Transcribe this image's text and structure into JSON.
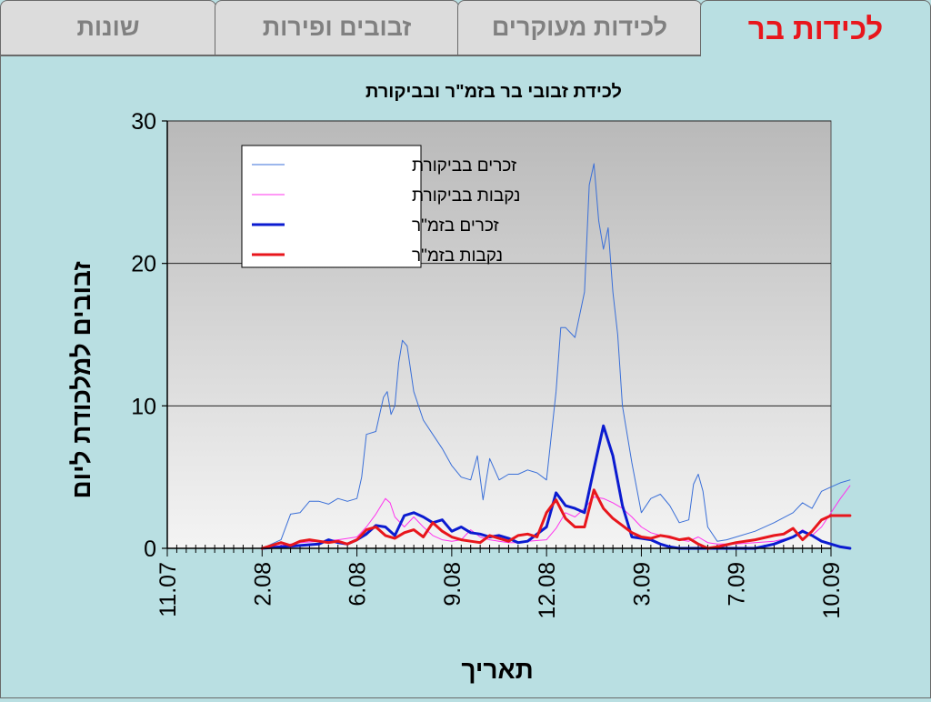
{
  "tabs": [
    {
      "label": "לכידות בר",
      "active": true
    },
    {
      "label": "לכידות מעוקרים",
      "active": false
    },
    {
      "label": "זבובים ופירות",
      "active": false
    },
    {
      "label": "שונות",
      "active": false
    }
  ],
  "colors": {
    "accent_tab": "#e8161c",
    "background": "#b9dfe2",
    "male_control": "#3a6fd8",
    "female_control": "#ff33ee",
    "male_sit": "#0b1bd0",
    "female_sit": "#e8161c"
  },
  "chart_data": {
    "type": "line",
    "title": "לכידת זבובי בר בזמ\"ר ובביקורת",
    "xlabel": "תאריך",
    "ylabel": "זבובים למלכודת ליום",
    "ylim": [
      0,
      30
    ],
    "yticks": [
      0,
      10,
      20,
      30
    ],
    "xlim": [
      0,
      70
    ],
    "xticks": [
      {
        "x": 0,
        "label": "11.07"
      },
      {
        "x": 10,
        "label": "2.08"
      },
      {
        "x": 20,
        "label": "6.08"
      },
      {
        "x": 30,
        "label": "9.08"
      },
      {
        "x": 40,
        "label": "12.08"
      },
      {
        "x": 50,
        "label": "3.09"
      },
      {
        "x": 60,
        "label": "7.09"
      },
      {
        "x": 70,
        "label": "10.09"
      }
    ],
    "grid": "horizontal",
    "legend_position": "top-left",
    "series": [
      {
        "name": "זכרים בביקורת",
        "color": "#3a6fd8",
        "width": 1,
        "points": [
          [
            10,
            0
          ],
          [
            11,
            0.3
          ],
          [
            12,
            0.6
          ],
          [
            13,
            2.4
          ],
          [
            14,
            2.5
          ],
          [
            15,
            3.3
          ],
          [
            16,
            3.3
          ],
          [
            17,
            3.1
          ],
          [
            18,
            3.5
          ],
          [
            19,
            3.3
          ],
          [
            20,
            3.5
          ],
          [
            20.5,
            5
          ],
          [
            21,
            8
          ],
          [
            22,
            8.2
          ],
          [
            22.8,
            10.6
          ],
          [
            23.2,
            11
          ],
          [
            23.6,
            9.4
          ],
          [
            24,
            10
          ],
          [
            24.4,
            13
          ],
          [
            24.8,
            14.6
          ],
          [
            25.3,
            14.2
          ],
          [
            26,
            11
          ],
          [
            27,
            9
          ],
          [
            28,
            8
          ],
          [
            29,
            7
          ],
          [
            30,
            5.8
          ],
          [
            31,
            5
          ],
          [
            32,
            4.8
          ],
          [
            32.7,
            6.5
          ],
          [
            33.3,
            3.4
          ],
          [
            34,
            6.3
          ],
          [
            35,
            4.8
          ],
          [
            36,
            5.2
          ],
          [
            37,
            5.2
          ],
          [
            38,
            5.5
          ],
          [
            39,
            5.3
          ],
          [
            40,
            4.8
          ],
          [
            41,
            11
          ],
          [
            41.5,
            15.5
          ],
          [
            42,
            15.5
          ],
          [
            43,
            14.8
          ],
          [
            44,
            18
          ],
          [
            44.5,
            25.5
          ],
          [
            45,
            27
          ],
          [
            45.5,
            23
          ],
          [
            46,
            21
          ],
          [
            46.5,
            22.5
          ],
          [
            47,
            18
          ],
          [
            47.5,
            15
          ],
          [
            48,
            10
          ],
          [
            49,
            6
          ],
          [
            50,
            2.5
          ],
          [
            51,
            3.5
          ],
          [
            52,
            3.8
          ],
          [
            53,
            3
          ],
          [
            54,
            1.8
          ],
          [
            55,
            2
          ],
          [
            55.5,
            4.5
          ],
          [
            56,
            5.2
          ],
          [
            56.5,
            4
          ],
          [
            57,
            1.5
          ],
          [
            58,
            0.5
          ],
          [
            59,
            0.6
          ],
          [
            60,
            0.8
          ],
          [
            62,
            1.2
          ],
          [
            64,
            1.8
          ],
          [
            66,
            2.5
          ],
          [
            67,
            3.2
          ],
          [
            68,
            2.8
          ],
          [
            69,
            4
          ],
          [
            70,
            4.3
          ],
          [
            71,
            4.6
          ],
          [
            72,
            4.8
          ]
        ]
      },
      {
        "name": "נקבות בביקורת",
        "color": "#ff33ee",
        "width": 1,
        "points": [
          [
            10,
            0
          ],
          [
            12,
            0.2
          ],
          [
            14,
            0.4
          ],
          [
            16,
            0.5
          ],
          [
            18,
            0.6
          ],
          [
            20,
            0.8
          ],
          [
            21,
            1.5
          ],
          [
            22,
            2.4
          ],
          [
            23,
            3.5
          ],
          [
            23.5,
            3.2
          ],
          [
            24,
            2.2
          ],
          [
            25,
            1.5
          ],
          [
            26,
            2.2
          ],
          [
            27,
            1.5
          ],
          [
            28,
            0.9
          ],
          [
            29,
            0.6
          ],
          [
            30,
            0.5
          ],
          [
            31,
            0.6
          ],
          [
            32,
            1.3
          ],
          [
            33,
            0.8
          ],
          [
            34,
            0.6
          ],
          [
            35,
            0.5
          ],
          [
            36,
            0.4
          ],
          [
            37,
            0.4
          ],
          [
            38,
            0.5
          ],
          [
            40,
            0.6
          ],
          [
            41,
            1.4
          ],
          [
            42,
            2.5
          ],
          [
            43,
            2.2
          ],
          [
            44,
            2.8
          ],
          [
            45,
            3.6
          ],
          [
            46,
            3.5
          ],
          [
            47,
            3.2
          ],
          [
            48,
            2.8
          ],
          [
            49,
            2.2
          ],
          [
            50,
            1.5
          ],
          [
            51,
            1.1
          ],
          [
            52,
            0.9
          ],
          [
            53,
            0.7
          ],
          [
            54,
            0.6
          ],
          [
            55,
            0.5
          ],
          [
            56,
            0.8
          ],
          [
            57,
            0.4
          ],
          [
            58,
            0.3
          ],
          [
            60,
            0.3
          ],
          [
            62,
            0.4
          ],
          [
            64,
            0.5
          ],
          [
            66,
            0.8
          ],
          [
            67,
            1.3
          ],
          [
            68,
            0.9
          ],
          [
            69,
            1.5
          ],
          [
            70,
            2.5
          ],
          [
            71,
            3.5
          ],
          [
            72,
            4.4
          ]
        ]
      },
      {
        "name": "זכרים בזמ\"ר",
        "color": "#0b1bd0",
        "width": 3,
        "points": [
          [
            10,
            0
          ],
          [
            12,
            0.1
          ],
          [
            14,
            0.2
          ],
          [
            16,
            0.3
          ],
          [
            17,
            0.6
          ],
          [
            18,
            0.4
          ],
          [
            19,
            0.3
          ],
          [
            20,
            0.6
          ],
          [
            21,
            1
          ],
          [
            22,
            1.6
          ],
          [
            23,
            1.5
          ],
          [
            24,
            0.9
          ],
          [
            25,
            2.3
          ],
          [
            26,
            2.5
          ],
          [
            27,
            2.2
          ],
          [
            28,
            1.8
          ],
          [
            29,
            2
          ],
          [
            30,
            1.2
          ],
          [
            31,
            1.5
          ],
          [
            32,
            1.1
          ],
          [
            33,
            1
          ],
          [
            34,
            0.8
          ],
          [
            35,
            0.9
          ],
          [
            36,
            0.7
          ],
          [
            37,
            0.4
          ],
          [
            38,
            0.5
          ],
          [
            40,
            1.5
          ],
          [
            41,
            3.9
          ],
          [
            42,
            3
          ],
          [
            43,
            2.8
          ],
          [
            44,
            2.5
          ],
          [
            45,
            5.6
          ],
          [
            46,
            8.6
          ],
          [
            47,
            6.5
          ],
          [
            48,
            3
          ],
          [
            49,
            0.8
          ],
          [
            50,
            0.7
          ],
          [
            51,
            0.6
          ],
          [
            52,
            0.3
          ],
          [
            53,
            0.1
          ],
          [
            54,
            0
          ],
          [
            55,
            0
          ],
          [
            56,
            0
          ],
          [
            57,
            0
          ],
          [
            58,
            0
          ],
          [
            60,
            0
          ],
          [
            62,
            0
          ],
          [
            64,
            0.3
          ],
          [
            66,
            0.8
          ],
          [
            67,
            1.2
          ],
          [
            68,
            0.9
          ],
          [
            69,
            0.5
          ],
          [
            70,
            0.3
          ],
          [
            71,
            0.1
          ],
          [
            72,
            0
          ]
        ]
      },
      {
        "name": "נקבות בזמ\"ר",
        "color": "#e8161c",
        "width": 3,
        "points": [
          [
            10,
            0
          ],
          [
            11,
            0.2
          ],
          [
            12,
            0.4
          ],
          [
            13,
            0.2
          ],
          [
            14,
            0.5
          ],
          [
            15,
            0.6
          ],
          [
            16,
            0.5
          ],
          [
            17,
            0.4
          ],
          [
            18,
            0.5
          ],
          [
            19,
            0.3
          ],
          [
            20,
            0.6
          ],
          [
            21,
            1.3
          ],
          [
            22,
            1.5
          ],
          [
            23,
            0.9
          ],
          [
            24,
            0.7
          ],
          [
            25,
            1.1
          ],
          [
            26,
            1.3
          ],
          [
            27,
            0.8
          ],
          [
            28,
            1.8
          ],
          [
            29,
            1.2
          ],
          [
            30,
            0.8
          ],
          [
            31,
            0.6
          ],
          [
            32,
            0.5
          ],
          [
            33,
            0.4
          ],
          [
            34,
            0.9
          ],
          [
            35,
            0.7
          ],
          [
            36,
            0.5
          ],
          [
            37,
            0.9
          ],
          [
            38,
            1
          ],
          [
            39,
            0.8
          ],
          [
            40,
            2.5
          ],
          [
            41,
            3.4
          ],
          [
            42,
            2.1
          ],
          [
            43,
            1.5
          ],
          [
            44,
            1.5
          ],
          [
            45,
            4.1
          ],
          [
            46,
            2.8
          ],
          [
            47,
            2.1
          ],
          [
            48,
            1.6
          ],
          [
            49,
            1.1
          ],
          [
            50,
            0.8
          ],
          [
            51,
            0.7
          ],
          [
            52,
            0.9
          ],
          [
            53,
            0.8
          ],
          [
            54,
            0.6
          ],
          [
            55,
            0.7
          ],
          [
            56,
            0.3
          ],
          [
            57,
            0
          ],
          [
            58,
            0.1
          ],
          [
            60,
            0.4
          ],
          [
            62,
            0.6
          ],
          [
            64,
            0.9
          ],
          [
            65,
            1
          ],
          [
            66,
            1.4
          ],
          [
            67,
            0.6
          ],
          [
            68,
            1.2
          ],
          [
            69,
            2
          ],
          [
            70,
            2.3
          ],
          [
            71,
            2.3
          ],
          [
            72,
            2.3
          ]
        ]
      }
    ]
  }
}
